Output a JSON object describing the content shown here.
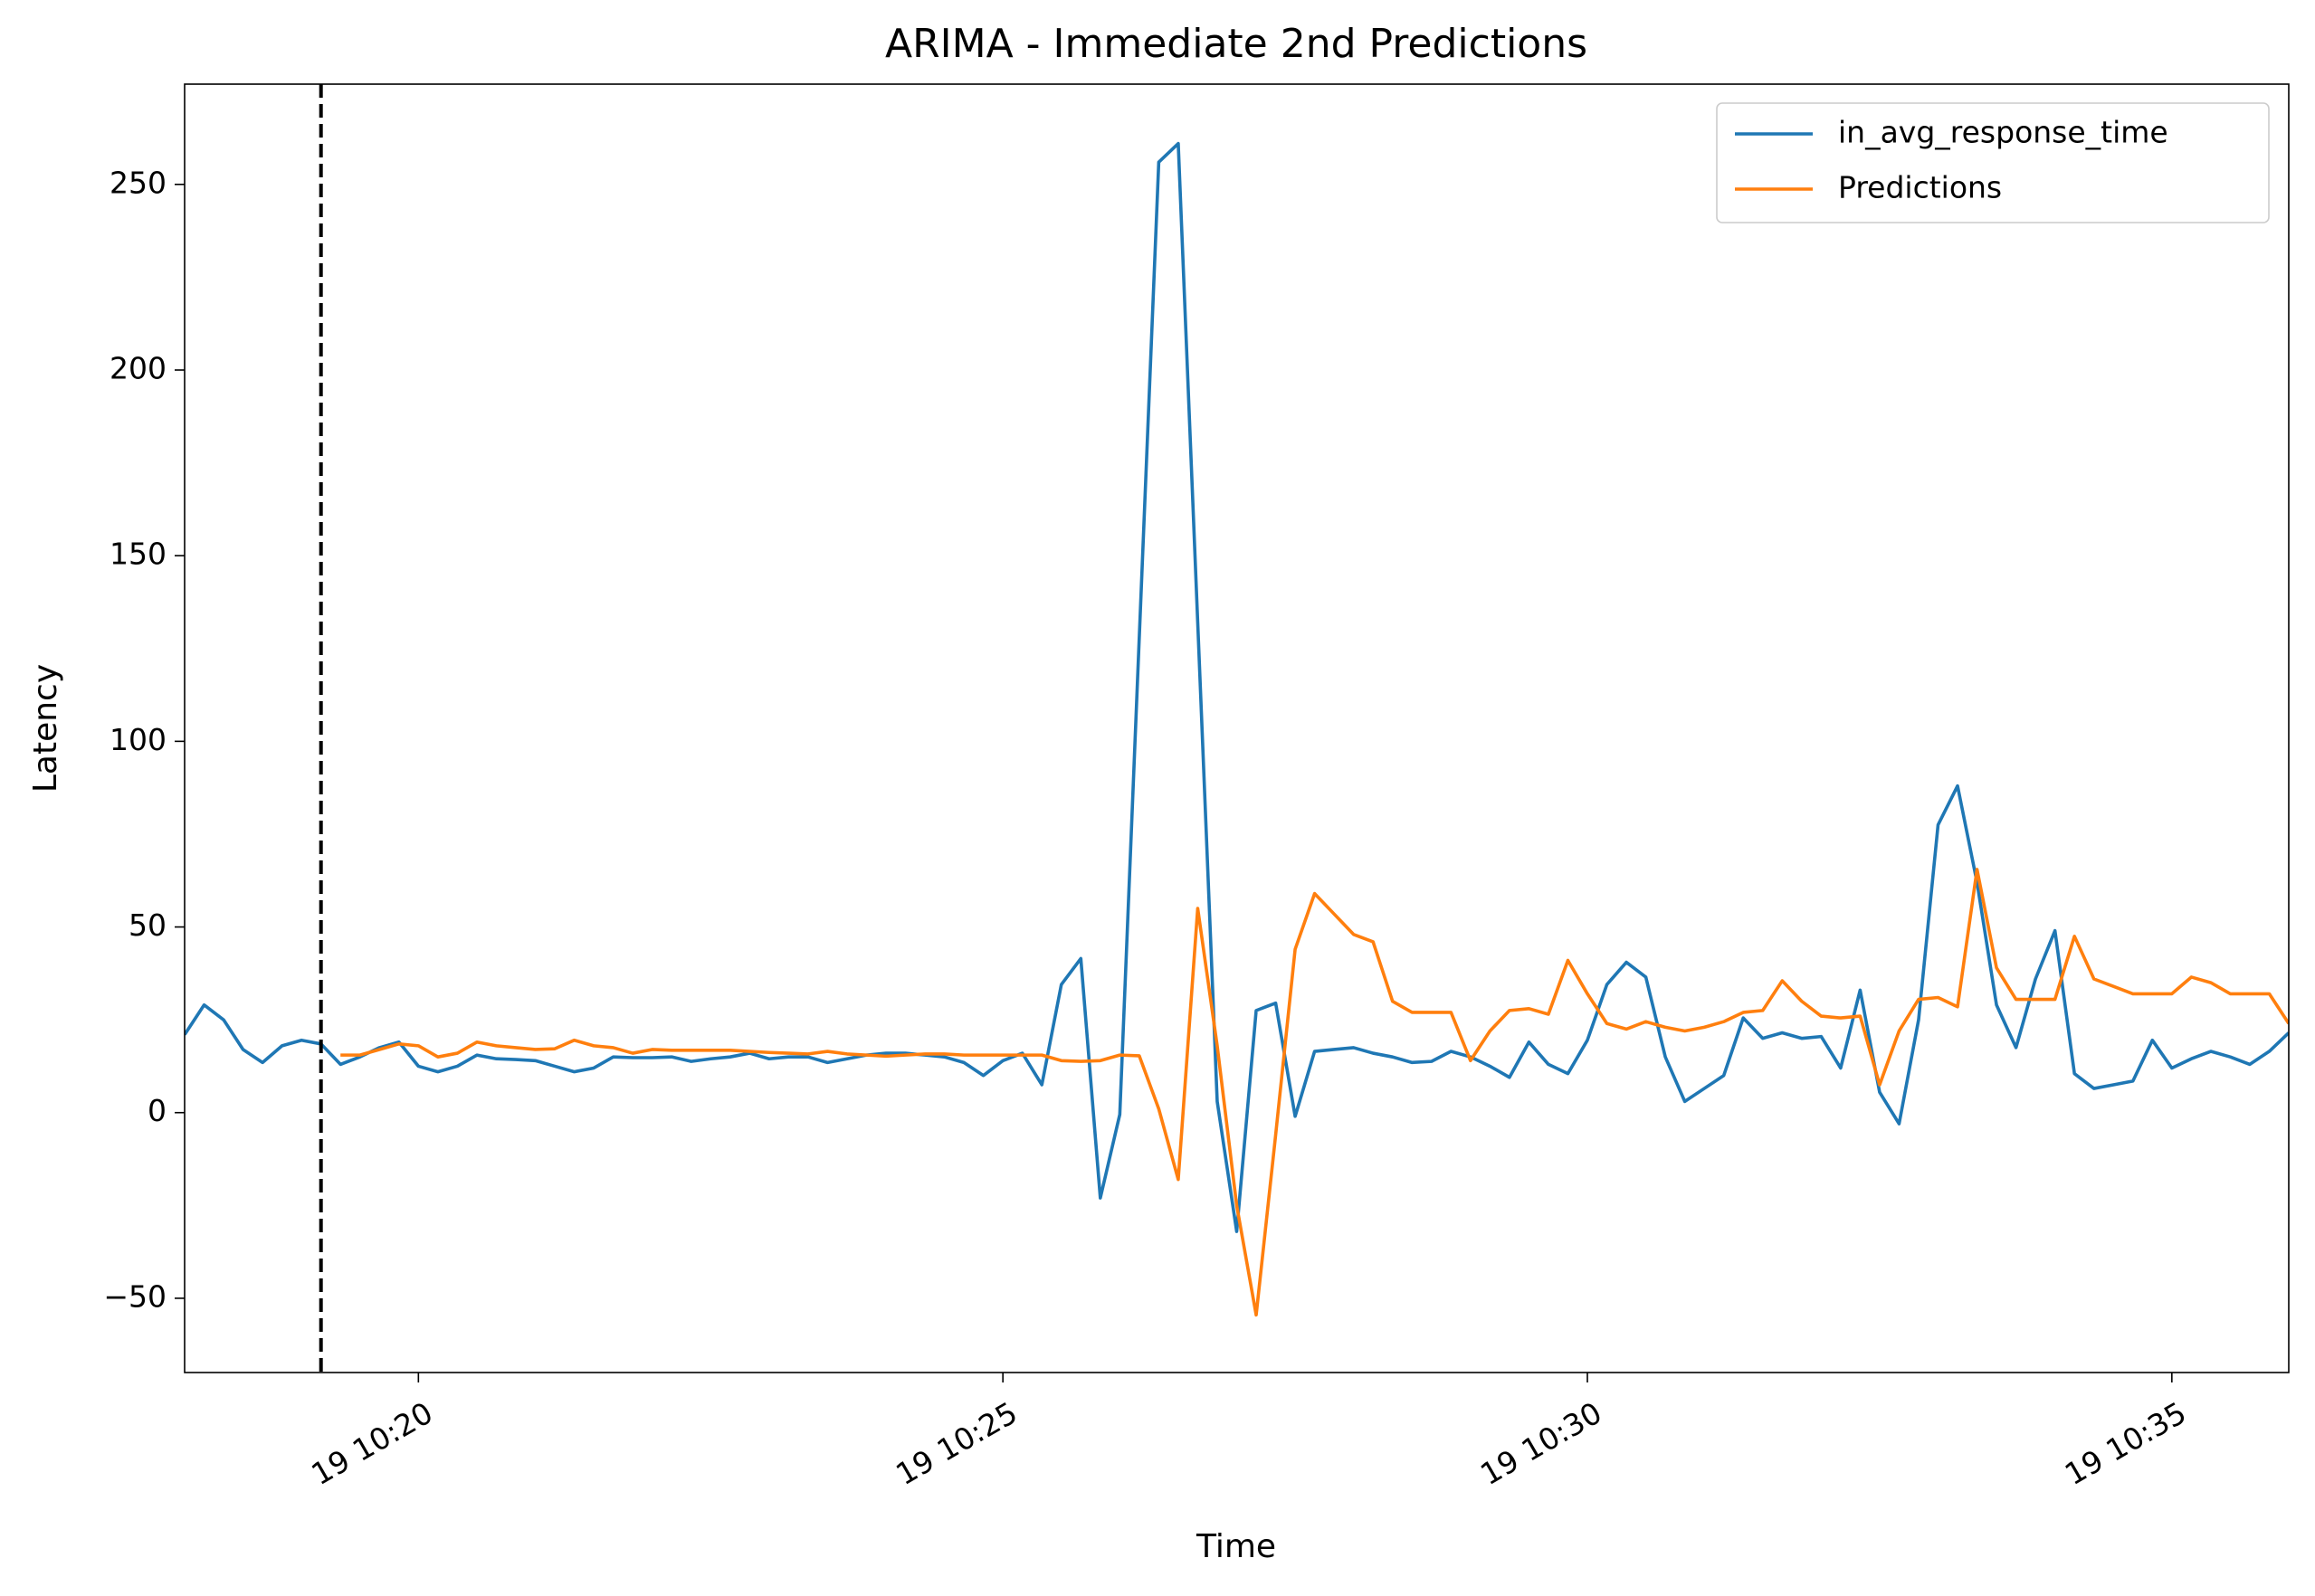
{
  "chart_data": {
    "type": "line",
    "title": "ARIMA - Immediate 2nd Predictions",
    "xlabel": "Time",
    "ylabel": "Latency",
    "x": [
      "19 10:18:00",
      "19 10:18:10",
      "19 10:18:20",
      "19 10:18:30",
      "19 10:18:40",
      "19 10:18:50",
      "19 10:19:00",
      "19 10:19:10",
      "19 10:19:20",
      "19 10:19:30",
      "19 10:19:40",
      "19 10:19:50",
      "19 10:20:00",
      "19 10:20:10",
      "19 10:20:20",
      "19 10:20:30",
      "19 10:20:40",
      "19 10:20:50",
      "19 10:21:00",
      "19 10:21:10",
      "19 10:21:20",
      "19 10:21:30",
      "19 10:21:40",
      "19 10:21:50",
      "19 10:22:00",
      "19 10:22:10",
      "19 10:22:20",
      "19 10:22:30",
      "19 10:22:40",
      "19 10:22:50",
      "19 10:23:00",
      "19 10:23:10",
      "19 10:23:20",
      "19 10:23:30",
      "19 10:23:40",
      "19 10:23:50",
      "19 10:24:00",
      "19 10:24:10",
      "19 10:24:20",
      "19 10:24:30",
      "19 10:24:40",
      "19 10:24:50",
      "19 10:25:00",
      "19 10:25:10",
      "19 10:25:20",
      "19 10:25:30",
      "19 10:25:40",
      "19 10:25:50",
      "19 10:26:00",
      "19 10:26:10",
      "19 10:26:20",
      "19 10:26:30",
      "19 10:26:40",
      "19 10:26:50",
      "19 10:27:00",
      "19 10:27:10",
      "19 10:27:20",
      "19 10:27:30",
      "19 10:27:40",
      "19 10:27:50",
      "19 10:28:00",
      "19 10:28:10",
      "19 10:28:20",
      "19 10:28:30",
      "19 10:28:40",
      "19 10:28:50",
      "19 10:29:00",
      "19 10:29:10",
      "19 10:29:20",
      "19 10:29:30",
      "19 10:29:40",
      "19 10:29:50",
      "19 10:30:00",
      "19 10:30:10",
      "19 10:30:20",
      "19 10:30:30",
      "19 10:30:40",
      "19 10:30:50",
      "19 10:31:00",
      "19 10:31:10",
      "19 10:31:20",
      "19 10:31:30",
      "19 10:31:40",
      "19 10:31:50",
      "19 10:32:00",
      "19 10:32:10",
      "19 10:32:20",
      "19 10:32:30",
      "19 10:32:40",
      "19 10:32:50",
      "19 10:33:00",
      "19 10:33:10",
      "19 10:33:20",
      "19 10:33:30",
      "19 10:33:40",
      "19 10:33:50",
      "19 10:34:00",
      "19 10:34:10",
      "19 10:34:20",
      "19 10:34:30",
      "19 10:34:40",
      "19 10:34:50",
      "19 10:35:00",
      "19 10:35:10",
      "19 10:35:20",
      "19 10:35:30",
      "19 10:35:40",
      "19 10:35:50",
      "19 10:36:00"
    ],
    "series": [
      {
        "name": "in_avg_response_time",
        "color": "#1f77b4",
        "values": [
          21,
          29,
          25,
          17,
          13.5,
          18,
          19.5,
          18.5,
          13,
          15,
          17.5,
          19,
          12.5,
          11,
          12.5,
          15.5,
          14.5,
          14.3,
          14,
          12.5,
          11,
          12,
          15,
          14.8,
          14.8,
          15,
          13.8,
          14.5,
          15,
          16,
          14.5,
          15,
          15,
          13.5,
          14.5,
          15.5,
          16,
          16,
          15.5,
          15,
          13.5,
          10,
          14,
          16,
          7.5,
          34.5,
          41.5,
          -23,
          -0.5,
          128,
          256,
          261,
          132,
          3,
          -32,
          27.5,
          29.5,
          -1,
          16.5,
          17,
          17.5,
          16,
          15,
          13.5,
          13.8,
          16.5,
          15,
          12.5,
          9.5,
          19,
          13,
          10.5,
          19.5,
          34.5,
          40.5,
          36.5,
          15,
          3,
          6.5,
          10,
          25.5,
          20,
          21.5,
          20,
          20.5,
          12,
          33,
          5.5,
          -3,
          25,
          77.5,
          88,
          62,
          29,
          17.5,
          36,
          49,
          10.5,
          6.5,
          7.5,
          8.5,
          19.5,
          12,
          14.5,
          16.5,
          15,
          13,
          16.5,
          21.5
        ]
      },
      {
        "name": "Predictions",
        "color": "#ff7f0e",
        "values": [
          null,
          null,
          null,
          null,
          null,
          null,
          null,
          null,
          15.5,
          15.5,
          17,
          18.5,
          18,
          15,
          16,
          19,
          18,
          17.5,
          17,
          17.2,
          19.5,
          18,
          17.5,
          16,
          17,
          16.8,
          16.8,
          16.8,
          16.8,
          16.5,
          16.2,
          16,
          15.8,
          16.5,
          15.8,
          15.5,
          15.2,
          15.5,
          15.8,
          15.8,
          15.5,
          15.5,
          15.5,
          15.5,
          15.5,
          14,
          13.8,
          14,
          15.5,
          15.3,
          1,
          -18,
          55,
          18,
          -25,
          -54.5,
          -6,
          44,
          59,
          53.5,
          48,
          46,
          30,
          27,
          27,
          27,
          14,
          22,
          27.5,
          28,
          26.5,
          41,
          32,
          24,
          22.5,
          24.5,
          23,
          22,
          23,
          24.5,
          27,
          27.5,
          35.5,
          30,
          26,
          25.5,
          26,
          7.5,
          22,
          30.5,
          31,
          28.5,
          65.5,
          39,
          30.5,
          30.5,
          30.5,
          47.5,
          36,
          34,
          32,
          32,
          32,
          36.5,
          35,
          32,
          32,
          32,
          24
        ]
      }
    ],
    "xlim": [
      "19 10:18:00",
      "19 10:36:00"
    ],
    "xticks": [
      "19 10:20",
      "19 10:25",
      "19 10:30",
      "19 10:35"
    ],
    "ylim": [
      -70,
      277
    ],
    "yticks": [
      {
        "value": -50,
        "label": "−50"
      },
      0,
      50,
      100,
      150,
      200,
      250
    ],
    "vline": {
      "x": "19 10:19:10",
      "color": "#000000",
      "style": "dashed"
    },
    "grid": false,
    "legend": "upper right"
  }
}
